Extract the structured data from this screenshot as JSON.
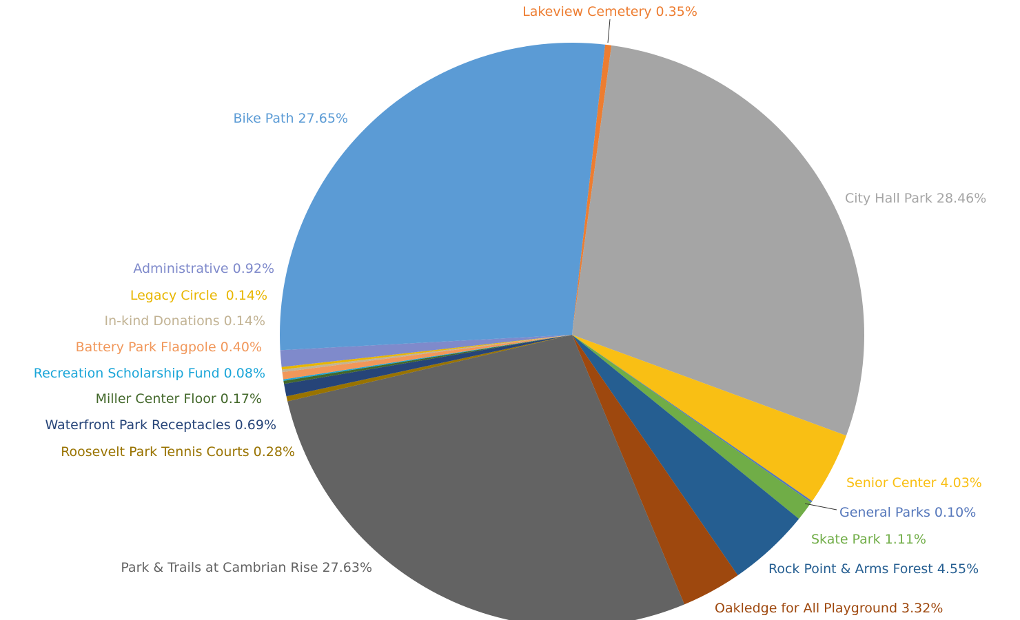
{
  "chart_data": {
    "type": "pie",
    "categories": [
      "Lakeview Cemetery",
      "City Hall Park",
      "Senior Center",
      "General Parks",
      "Skate Park",
      "Rock Point & Arms Forest",
      "Oakledge for All  Playground",
      "Park & Trails at Cambrian Rise",
      "Roosevelt Park Tennis Courts",
      "Waterfront Park Receptacles",
      "Miller Center Floor",
      "Recreation Scholarship Fund",
      "Battery Park Flagpole",
      "In-kind Donations",
      "Legacy Circle ",
      "Administrative",
      "Bike Path"
    ],
    "values": [
      0.35,
      28.46,
      4.03,
      0.1,
      1.11,
      4.55,
      3.32,
      27.63,
      0.28,
      0.69,
      0.17,
      0.08,
      0.4,
      0.14,
      0.14,
      0.92,
      27.65
    ],
    "value_labels": [
      "0.35%",
      "28.46%",
      "4.03%",
      "0.10%",
      "1.11%",
      "4.55%",
      "3.32%",
      "27.63%",
      "0.28%",
      "0.69%",
      "0.17%",
      "0.08%",
      "0.40%",
      "0.14%",
      "0.14%",
      "0.92%",
      "27.65%"
    ],
    "colors": [
      "#ed7d31",
      "#a5a5a5",
      "#f9bf14",
      "#5577bb",
      "#70ad47",
      "#255e91",
      "#9e480e",
      "#636363",
      "#997300",
      "#264478",
      "#43682b",
      "#1aa5d8",
      "#f1975a",
      "#c2b394",
      "#e8b600",
      "#7f8acb",
      "#5b9bd5"
    ]
  }
}
